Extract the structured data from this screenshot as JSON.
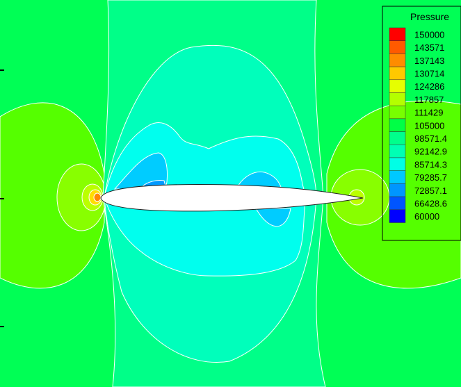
{
  "chart_data": {
    "type": "heatmap",
    "colorbar": {
      "title": "Pressure",
      "levels": [
        {
          "value": "150000",
          "color": "#ff0000"
        },
        {
          "value": "143571",
          "color": "#ff5a00"
        },
        {
          "value": "137143",
          "color": "#ff8c00"
        },
        {
          "value": "130714",
          "color": "#ffc800"
        },
        {
          "value": "124286",
          "color": "#e6ff00"
        },
        {
          "value": "117857",
          "color": "#b4ff00"
        },
        {
          "value": "111429",
          "color": "#78ff00"
        },
        {
          "value": "105000",
          "color": "#00ff46"
        },
        {
          "value": "98571.4",
          "color": "#00ff8c"
        },
        {
          "value": "92142.9",
          "color": "#00ffb4"
        },
        {
          "value": "85714.3",
          "color": "#00ffe6"
        },
        {
          "value": "79285.7",
          "color": "#00c8ff"
        },
        {
          "value": "72857.1",
          "color": "#0096ff"
        },
        {
          "value": "66428.6",
          "color": "#0055ff"
        },
        {
          "value": "60000",
          "color": "#0000ff"
        }
      ]
    },
    "legend_position": "top-right",
    "field_colors": {
      "background": "#00ff55",
      "far_field_lobe": "#55ff00",
      "inner_lobe": "#88ff00",
      "nose_ring_1": "#bbff00",
      "nose_ring_2": "#ffdd00",
      "nose_ring_3": "#ff8800",
      "mid_band": "#00ff88",
      "inner_band": "#00ffbb",
      "suction_1": "#00ffee",
      "suction_2": "#00ccff",
      "suction_3": "#0099ff",
      "airfoil": "#ffffff",
      "isoline": "#ffffff"
    }
  }
}
